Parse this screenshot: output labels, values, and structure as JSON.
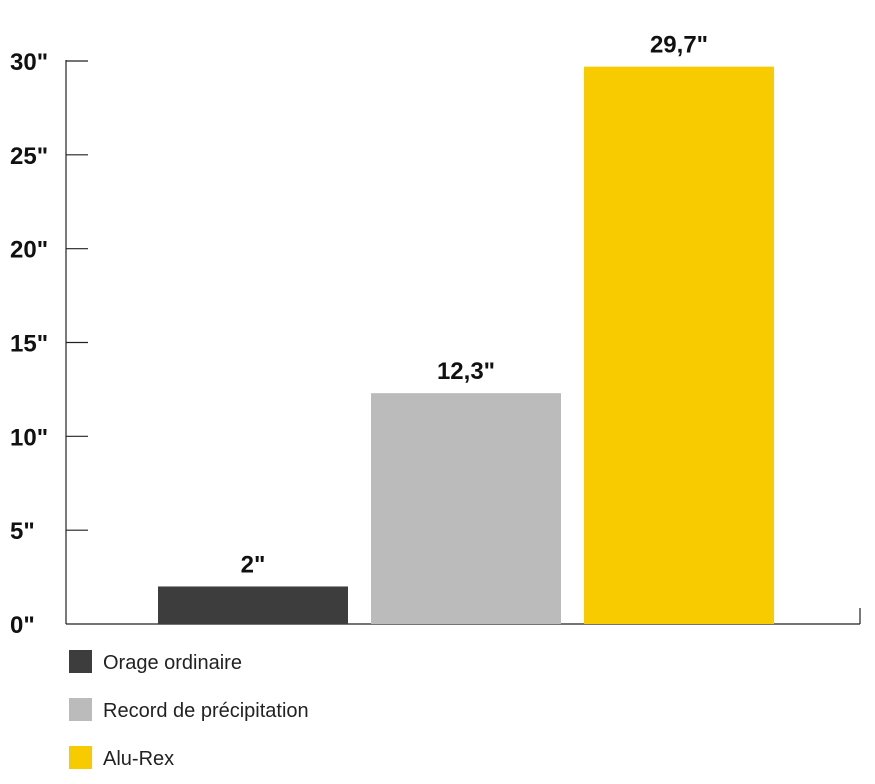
{
  "chart_data": {
    "type": "bar",
    "categories": [
      "Orage ordinaire",
      "Record de précipitation",
      "Alu-Rex"
    ],
    "values": [
      2,
      12.3,
      29.7
    ],
    "value_labels": [
      "2\"",
      "12,3\"",
      "29,7\""
    ],
    "colors": [
      "#3d3d3d",
      "#bbbbbb",
      "#f7cb00"
    ],
    "ylim": [
      0,
      30
    ],
    "yticks": [
      0,
      5,
      10,
      15,
      20,
      25,
      30
    ],
    "ytick_labels": [
      "0\"",
      "5\"",
      "10\"",
      "15\"",
      "20\"",
      "25\"",
      "30\""
    ],
    "title": "",
    "xlabel": "",
    "ylabel": "",
    "grid": false,
    "legend_position": "bottom-left"
  }
}
